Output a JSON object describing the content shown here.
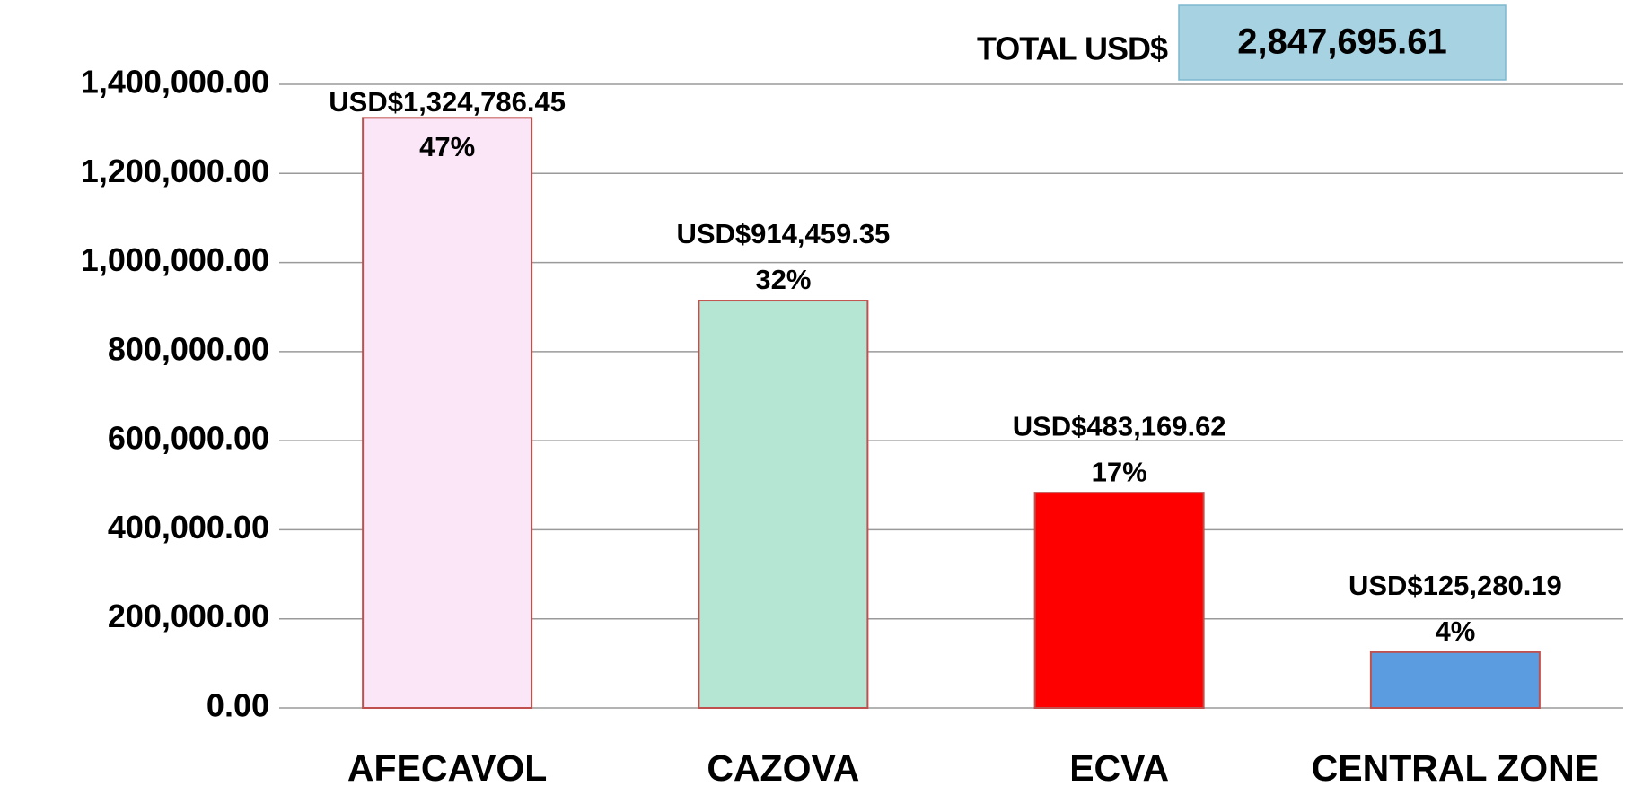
{
  "chart_data": {
    "type": "bar",
    "categories": [
      "AFECAVOL",
      "CAZOVA",
      "ECVA",
      "CENTRAL ZONE"
    ],
    "values": [
      1324786.45,
      914459.35,
      483169.62,
      125280.19
    ],
    "value_labels": [
      "USD$1,324,786.45",
      "USD$914,459.35",
      "USD$483,169.62",
      "USD$125,280.19"
    ],
    "percent_labels": [
      "47%",
      "32%",
      "17%",
      "4%"
    ],
    "colors": [
      "#fbe6f8",
      "#b5e6d4",
      "#ff0000",
      "#5b9be0"
    ],
    "ylim": [
      0,
      1400000
    ],
    "yticks": [
      {
        "value": 0,
        "label": "0.00"
      },
      {
        "value": 200000,
        "label": "200,000.00"
      },
      {
        "value": 400000,
        "label": "400,000.00"
      },
      {
        "value": 600000,
        "label": "600,000.00"
      },
      {
        "value": 800000,
        "label": "800,000.00"
      },
      {
        "value": 1000000,
        "label": "1,000,000.00"
      },
      {
        "value": 1200000,
        "label": "1,200,000.00"
      },
      {
        "value": 1400000,
        "label": "1,400,000.00"
      }
    ],
    "grid": true,
    "total_label": "TOTAL USD$",
    "total_value_label": "2,847,695.61"
  }
}
